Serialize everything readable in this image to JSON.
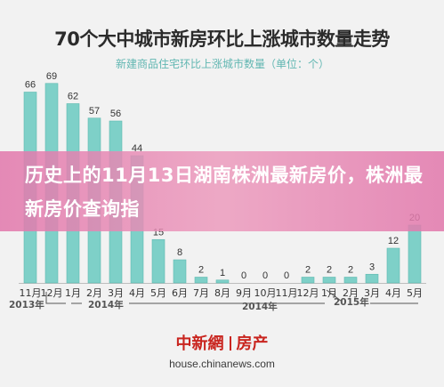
{
  "banner": {
    "text": "历史上的11月13日湖南株洲最新房价，株洲最新房价查询指"
  },
  "logo": {
    "brand": "中新網",
    "section": "房产",
    "domain": "house.chinanews.com"
  },
  "colors": {
    "bar": "#7ed0c8",
    "bar_stroke": "#5fb9b1",
    "label": "#333333",
    "accent_text": "#62b7b2",
    "banner": "#e27aac",
    "brand": "#c9251f"
  },
  "chart_data": {
    "type": "bar",
    "title": "70个大中城市新房环比上涨城市数量走势",
    "subtitle": "新建商品住宅环比上涨城市数量（单位：个）",
    "categories": [
      "11月",
      "12月",
      "1月",
      "2月",
      "3月",
      "4月",
      "5月",
      "6月",
      "7月",
      "8月",
      "9月",
      "10月",
      "11月",
      "12月",
      "1月",
      "2月",
      "3月",
      "4月",
      "5月"
    ],
    "values": [
      66,
      69,
      62,
      57,
      56,
      44,
      15,
      8,
      2,
      1,
      0,
      0,
      0,
      2,
      2,
      2,
      3,
      12,
      20
    ],
    "year_groups": [
      {
        "label": "2013年",
        "start": 0,
        "end": 1
      },
      {
        "label": "2014年",
        "start": 2,
        "end": 13
      },
      {
        "label": "2014年",
        "start": 11,
        "end": 13
      },
      {
        "label": "2015年",
        "start": 14,
        "end": 18
      }
    ],
    "ylim": [
      0,
      70
    ],
    "grid": false,
    "legend": "none"
  }
}
